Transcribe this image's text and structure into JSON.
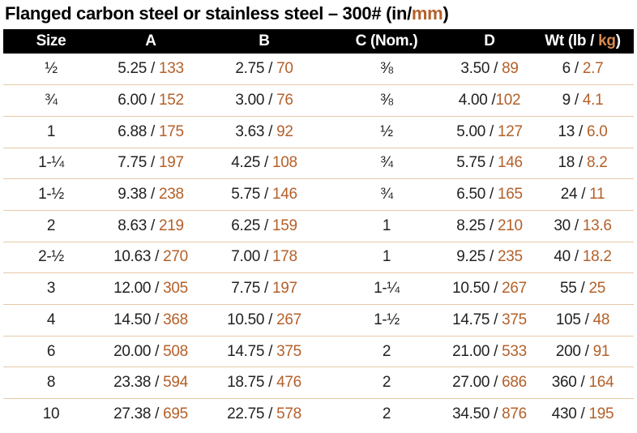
{
  "title": {
    "prefix": "Flanged carbon steel or stainless steel – 300# (in/",
    "accent": "mm",
    "suffix": ")"
  },
  "header": {
    "size": "Size",
    "a": "A",
    "b": "B",
    "c": "C (Nom.)",
    "d": "D",
    "wt_prefix": "Wt (lb / ",
    "wt_accent": "kg",
    "wt_suffix": ")"
  },
  "colors": {
    "accent": "#b4602a",
    "header_bg": "#000000",
    "row_divider": "#e6c9a8"
  },
  "rows": [
    {
      "size": "½",
      "a_in": "5.25",
      "a_sep": " / ",
      "a_mm": "133",
      "b_in": "2.75",
      "b_sep": " / ",
      "b_mm": "70",
      "c": "⅜",
      "d_in": "3.50",
      "d_sep": " / ",
      "d_mm": "89",
      "wt_lb": "6",
      "wt_sep": " / ",
      "wt_kg": "2.7"
    },
    {
      "size": "¾",
      "a_in": "6.00",
      "a_sep": " / ",
      "a_mm": "152",
      "b_in": "3.00",
      "b_sep": " / ",
      "b_mm": "76",
      "c": "⅜",
      "d_in": "4.00",
      "d_sep": " /",
      "d_mm": "102",
      "wt_lb": "9",
      "wt_sep": " / ",
      "wt_kg": "4.1"
    },
    {
      "size": "1",
      "a_in": "6.88",
      "a_sep": " / ",
      "a_mm": "175",
      "b_in": "3.63",
      "b_sep": " / ",
      "b_mm": "92",
      "c": "½",
      "d_in": "5.00",
      "d_sep": " / ",
      "d_mm": "127",
      "wt_lb": "13",
      "wt_sep": " / ",
      "wt_kg": "6.0"
    },
    {
      "size": "1-¼",
      "a_in": "7.75",
      "a_sep": " / ",
      "a_mm": "197",
      "b_in": "4.25",
      "b_sep": " / ",
      "b_mm": "108",
      "c": "¾",
      "d_in": "5.75",
      "d_sep": " / ",
      "d_mm": "146",
      "wt_lb": "18",
      "wt_sep": " / ",
      "wt_kg": "8.2"
    },
    {
      "size": "1-½",
      "a_in": "9.38",
      "a_sep": " / ",
      "a_mm": "238",
      "b_in": "5.75",
      "b_sep": " / ",
      "b_mm": "146",
      "c": "¾",
      "d_in": "6.50",
      "d_sep": " / ",
      "d_mm": "165",
      "wt_lb": "24",
      "wt_sep": " / ",
      "wt_kg": "11"
    },
    {
      "size": "2",
      "a_in": "8.63",
      "a_sep": " / ",
      "a_mm": "219",
      "b_in": "6.25",
      "b_sep": " / ",
      "b_mm": "159",
      "c": "1",
      "d_in": "8.25",
      "d_sep": " / ",
      "d_mm": "210",
      "wt_lb": "30",
      "wt_sep": " / ",
      "wt_kg": "13.6"
    },
    {
      "size": "2-½",
      "a_in": "10.63",
      "a_sep": " / ",
      "a_mm": "270",
      "b_in": "7.00",
      "b_sep": " / ",
      "b_mm": "178",
      "c": "1",
      "d_in": "9.25",
      "d_sep": " / ",
      "d_mm": "235",
      "wt_lb": "40",
      "wt_sep": " / ",
      "wt_kg": "18.2"
    },
    {
      "size": "3",
      "a_in": "12.00",
      "a_sep": " / ",
      "a_mm": "305",
      "b_in": "7.75",
      "b_sep": " / ",
      "b_mm": "197",
      "c": "1-¼",
      "d_in": "10.50",
      "d_sep": " / ",
      "d_mm": "267",
      "wt_lb": "55",
      "wt_sep": " / ",
      "wt_kg": "25"
    },
    {
      "size": "4",
      "a_in": "14.50",
      "a_sep": " / ",
      "a_mm": "368",
      "b_in": "10.50",
      "b_sep": " / ",
      "b_mm": "267",
      "c": "1-½",
      "d_in": "14.75",
      "d_sep": " / ",
      "d_mm": "375",
      "wt_lb": "105",
      "wt_sep": " / ",
      "wt_kg": "48"
    },
    {
      "size": "6",
      "a_in": "20.00",
      "a_sep": " / ",
      "a_mm": "508",
      "b_in": "14.75",
      "b_sep": " / ",
      "b_mm": "375",
      "c": "2",
      "d_in": "21.00",
      "d_sep": " / ",
      "d_mm": "533",
      "wt_lb": "200",
      "wt_sep": " / ",
      "wt_kg": "91"
    },
    {
      "size": "8",
      "a_in": "23.38",
      "a_sep": " / ",
      "a_mm": "594",
      "b_in": "18.75",
      "b_sep": " / ",
      "b_mm": "476",
      "c": "2",
      "d_in": "27.00",
      "d_sep": " / ",
      "d_mm": "686",
      "wt_lb": "360",
      "wt_sep": " / ",
      "wt_kg": "164"
    },
    {
      "size": "10",
      "a_in": "27.38",
      "a_sep": " / ",
      "a_mm": "695",
      "b_in": "22.75",
      "b_sep": " / ",
      "b_mm": "578",
      "c": "2",
      "d_in": "34.50",
      "d_sep": " / ",
      "d_mm": "876",
      "wt_lb": "430",
      "wt_sep": " / ",
      "wt_kg": "195"
    }
  ]
}
